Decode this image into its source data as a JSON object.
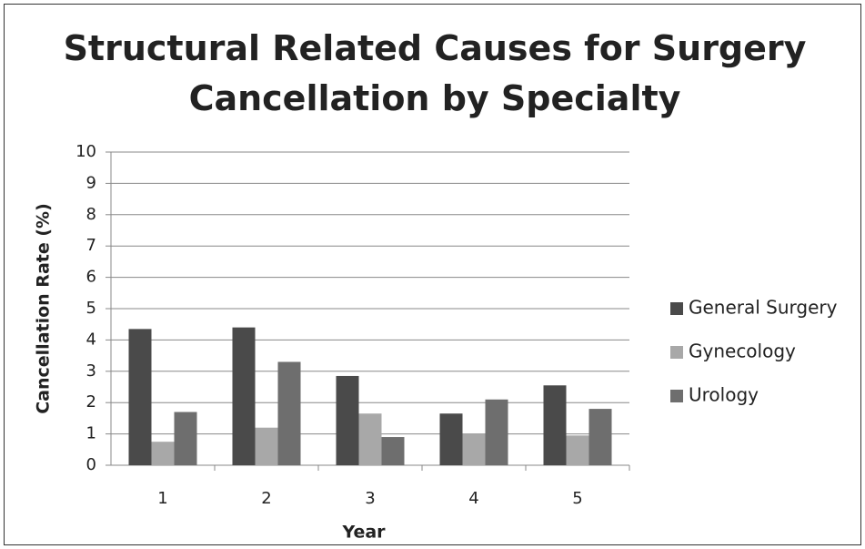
{
  "chart_data": {
    "type": "bar",
    "title": "Structural Related Causes for Surgery Cancellation by Specialty",
    "x_label": "Year",
    "y_label": "Cancellation Rate (%)",
    "categories": [
      "1",
      "2",
      "3",
      "4",
      "5"
    ],
    "series": [
      {
        "name": "General Surgery",
        "color": "#4a4a4a",
        "values": [
          4.35,
          4.4,
          2.85,
          1.65,
          2.55
        ]
      },
      {
        "name": "Gynecology",
        "color": "#a8a8a8",
        "values": [
          0.75,
          1.2,
          1.65,
          1.0,
          0.95
        ]
      },
      {
        "name": "Urology",
        "color": "#6e6e6e",
        "values": [
          1.7,
          3.3,
          0.9,
          2.1,
          1.8
        ]
      }
    ],
    "ylim": [
      0,
      10
    ],
    "yticks": [
      0,
      1,
      2,
      3,
      4,
      5,
      6,
      7,
      8,
      9,
      10
    ],
    "grid": true,
    "legend": "right"
  }
}
